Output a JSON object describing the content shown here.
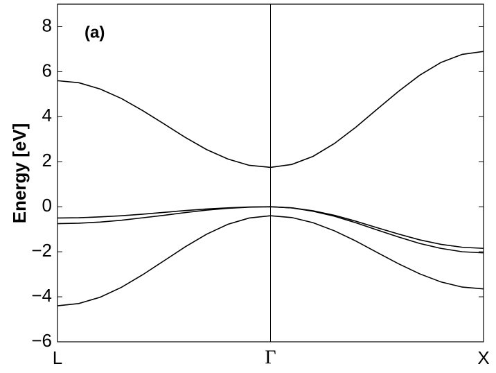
{
  "chart_data": {
    "type": "line",
    "ylabel": "Energy [eV]",
    "annotation": "(a)",
    "x": [
      0,
      0.1,
      0.2,
      0.3,
      0.4,
      0.5,
      0.6,
      0.7,
      0.8,
      0.9,
      1,
      1.1,
      1.2,
      1.3,
      1.4,
      1.5,
      1.6,
      1.7,
      1.8,
      1.9,
      2
    ],
    "series": [
      {
        "color": "#000000",
        "values": [
          5.6,
          5.51,
          5.23,
          4.81,
          4.27,
          3.68,
          3.08,
          2.54,
          2.12,
          1.84,
          1.75,
          1.88,
          2.24,
          2.81,
          3.53,
          4.33,
          5.12,
          5.84,
          6.41,
          6.77,
          6.9
        ]
      },
      {
        "color": "#000000",
        "values": [
          -0.5,
          -0.49,
          -0.45,
          -0.4,
          -0.33,
          -0.25,
          -0.17,
          -0.1,
          -0.05,
          -0.01,
          0,
          -0.05,
          -0.18,
          -0.38,
          -0.64,
          -0.93,
          -1.21,
          -1.47,
          -1.67,
          -1.8,
          -1.85
        ]
      },
      {
        "color": "#000000",
        "values": [
          -0.75,
          -0.73,
          -0.68,
          -0.6,
          -0.49,
          -0.38,
          -0.26,
          -0.15,
          -0.07,
          -0.02,
          0,
          -0.05,
          -0.2,
          -0.42,
          -0.71,
          -1.03,
          -1.34,
          -1.63,
          -1.85,
          -2,
          -2.05
        ]
      },
      {
        "color": "#000000",
        "values": [
          -4.4,
          -4.3,
          -4.02,
          -3.58,
          -3.02,
          -2.4,
          -1.78,
          -1.22,
          -0.78,
          -0.5,
          -0.4,
          -0.48,
          -0.71,
          -1.07,
          -1.52,
          -2.03,
          -2.53,
          -2.98,
          -3.34,
          -3.57,
          -3.65
        ]
      }
    ],
    "xlim": [
      0,
      2
    ],
    "xticks": [
      {
        "value": 0,
        "label": "L"
      },
      {
        "value": 1,
        "label": "Γ"
      },
      {
        "value": 2,
        "label": "X"
      }
    ],
    "ylim": [
      -6,
      9
    ],
    "yticks": [
      {
        "value": -6,
        "label": "−6"
      },
      {
        "value": -4,
        "label": "−4"
      },
      {
        "value": -2,
        "label": "−2"
      },
      0,
      2,
      4,
      6,
      8
    ]
  }
}
